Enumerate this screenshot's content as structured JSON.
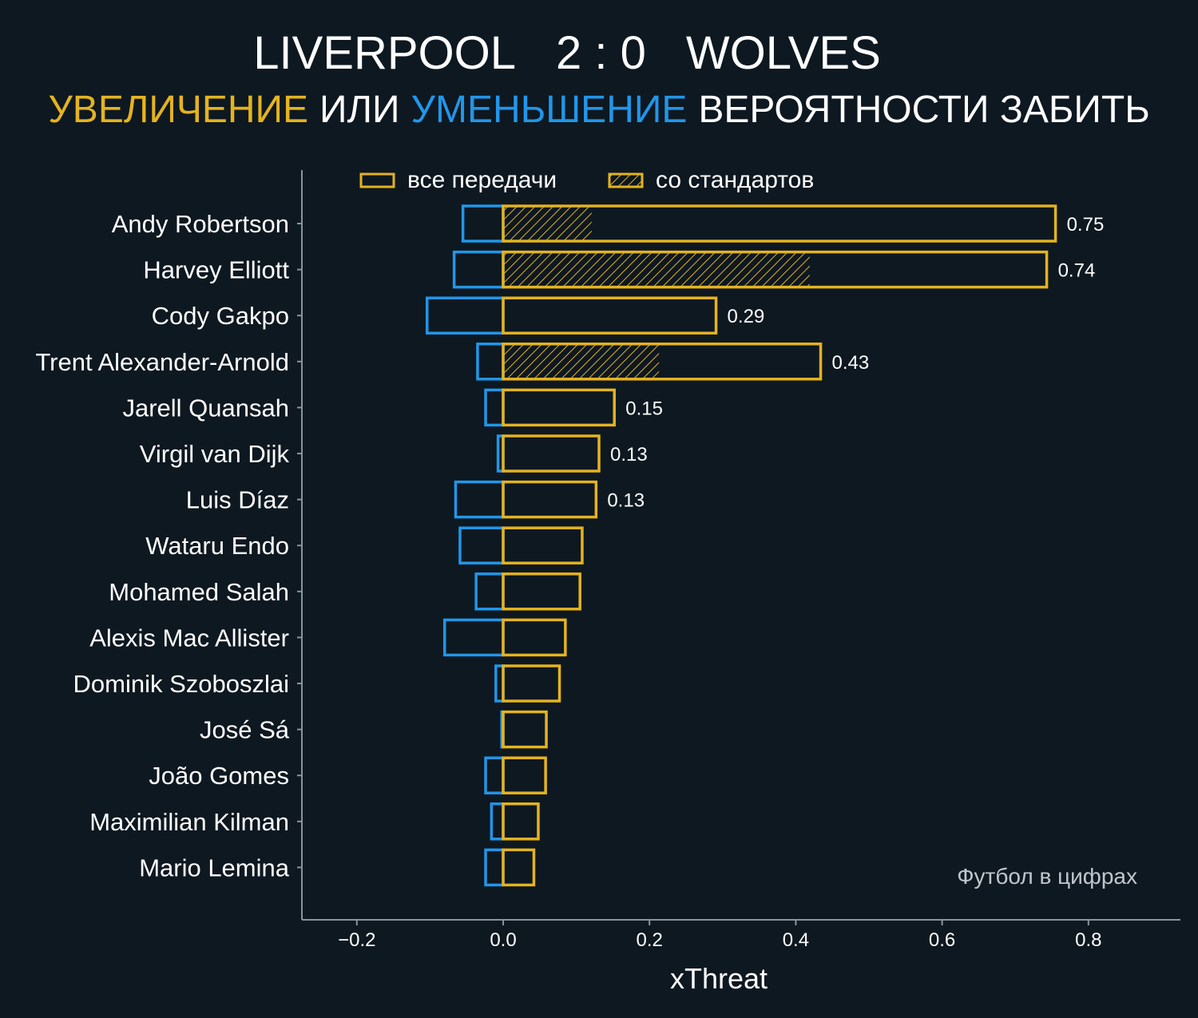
{
  "header": {
    "home_team": "LIVERPOOL",
    "score": "2 : 0",
    "away_team": "WOLVES",
    "subtitle_increase": "УВЕЛИЧЕНИЕ",
    "subtitle_or": "ИЛИ",
    "subtitle_decrease": "УМЕНЬШЕНИЕ",
    "subtitle_rest": "ВЕРОЯТНОСТИ ЗАБИТЬ"
  },
  "colors": {
    "background": "#0e1821",
    "increase": "#e4b31f",
    "decrease": "#2196e8",
    "text": "#ffffff",
    "axis": "#8a949c",
    "watermark": "#c0c6cc"
  },
  "watermark": "Футбол в цифрах",
  "chart_data": {
    "type": "bar",
    "orientation": "horizontal",
    "xlabel": "xThreat",
    "xlim": [
      -0.28,
      0.93
    ],
    "xticks": [
      -0.2,
      0.0,
      0.2,
      0.4,
      0.6,
      0.8
    ],
    "xtick_labels": [
      "−0.2",
      "0.0",
      "0.2",
      "0.4",
      "0.6",
      "0.8"
    ],
    "legend": {
      "placement": "top",
      "entries": [
        "все передачи",
        "со стандартов"
      ]
    },
    "players": [
      "Andy Robertson",
      "Harvey Elliott",
      "Cody Gakpo",
      "Trent Alexander-Arnold",
      "Jarell Quansah",
      "Virgil van Dijk",
      "Luis Díaz",
      "Wataru Endo",
      "Mohamed Salah",
      "Alexis Mac Allister",
      "Dominik Szoboszlai",
      "José Sá",
      "João Gomes",
      "Maximilian Kilman",
      "Mario Lemina"
    ],
    "series": [
      {
        "key": "positive",
        "name": "все передачи",
        "values": [
          0.755,
          0.743,
          0.291,
          0.434,
          0.152,
          0.131,
          0.127,
          0.108,
          0.105,
          0.085,
          0.077,
          0.059,
          0.058,
          0.048,
          0.042
        ]
      },
      {
        "key": "set_pieces",
        "name": "со стандартов",
        "values": [
          0.121,
          0.419,
          0.0,
          0.213,
          0.0,
          0.0,
          0.0,
          0.0,
          0.0,
          0.0,
          0.0,
          0.0,
          0.0,
          0.0,
          0.0
        ]
      },
      {
        "key": "negative",
        "values": [
          -0.055,
          -0.067,
          -0.104,
          -0.035,
          -0.024,
          -0.007,
          -0.065,
          -0.059,
          -0.037,
          -0.08,
          -0.01,
          -0.002,
          -0.024,
          -0.016,
          -0.024
        ]
      }
    ],
    "value_labels": [
      "0.75",
      "0.74",
      "0.29",
      "0.43",
      "0.15",
      "0.13",
      "0.13",
      "",
      "",
      "",
      "",
      "",
      "",
      "",
      ""
    ]
  }
}
